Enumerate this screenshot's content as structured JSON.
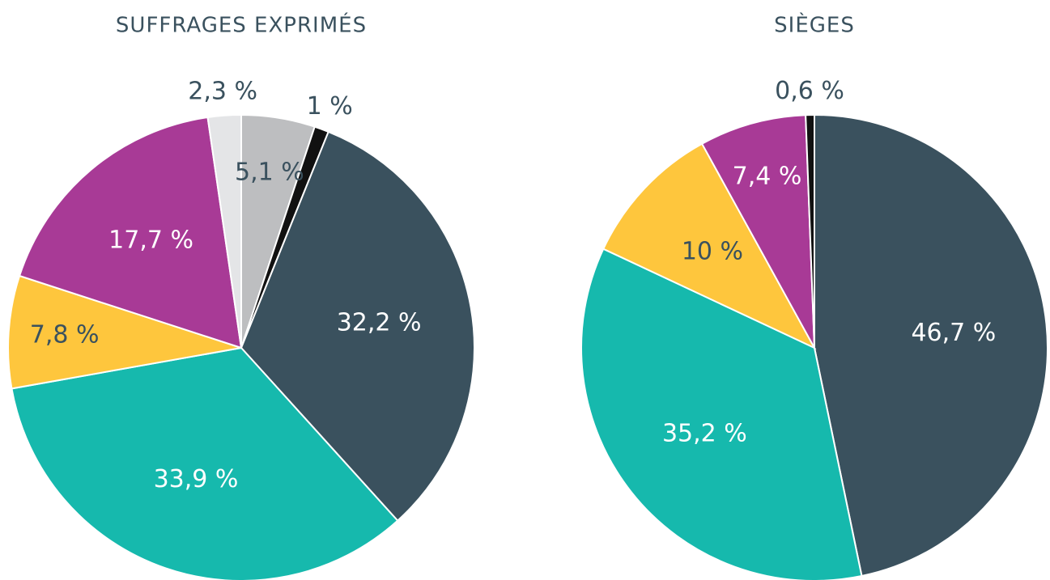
{
  "chart_data": [
    {
      "type": "pie",
      "title": "SUFFRAGES EXPRIMÉS",
      "values": [
        5.1,
        1,
        32.2,
        33.9,
        7.8,
        17.7,
        2.3
      ],
      "value_labels": [
        "5,1 %",
        "1 %",
        "32,2 %",
        "33,9 %",
        "7,8 %",
        "17,7 %",
        "2,3 %"
      ],
      "colors": [
        "#bdbec0",
        "#111111",
        "#3a515e",
        "#16b9ad",
        "#fec63d",
        "#a83a96",
        "#e4e5e7"
      ]
    },
    {
      "type": "pie",
      "title": "SIÈGES",
      "values": [
        46.7,
        35.2,
        10,
        7.4,
        0.6
      ],
      "value_labels": [
        "46,7 %",
        "35,2 %",
        "10 %",
        "7,4 %",
        "0,6 %"
      ],
      "colors": [
        "#3a515e",
        "#16b9ad",
        "#fec63d",
        "#a83a96",
        "#111111"
      ]
    }
  ]
}
